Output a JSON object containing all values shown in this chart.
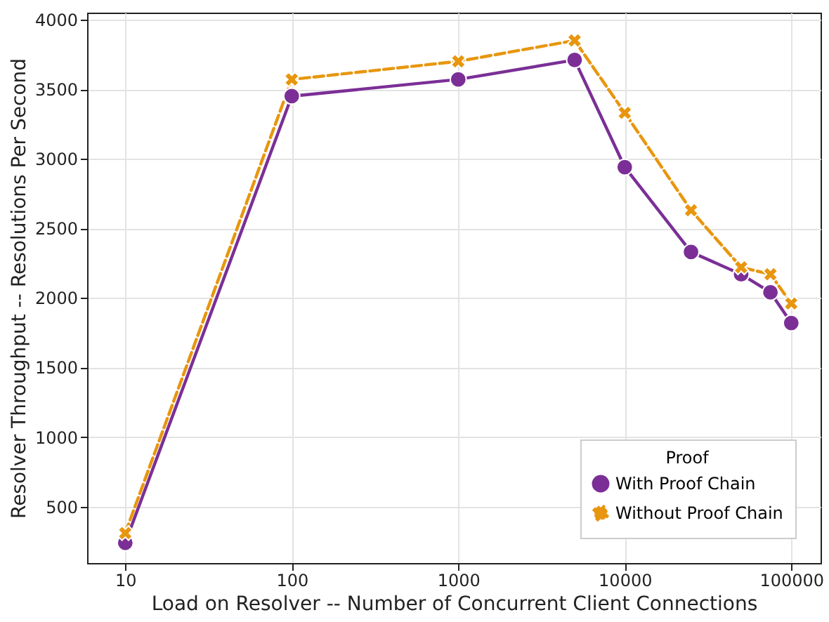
{
  "chart_data": {
    "type": "line",
    "xlabel": "Load on Resolver -- Number of Concurrent Client Connections",
    "ylabel": "Resolver Throughput -- Resolutions Per Second",
    "legend_title": "Proof",
    "log": "x",
    "grid": true,
    "legend": "bottom right",
    "x": [
      10,
      100,
      1000,
      5000,
      10000,
      25000,
      50000,
      75000,
      100000
    ],
    "xlim": [
      5.9,
      150000
    ],
    "xticks": [
      10,
      100,
      1000,
      10000,
      100000
    ],
    "ylim": [
      95,
      4050
    ],
    "yticks": [
      500,
      1000,
      1500,
      2000,
      2500,
      3000,
      3500,
      4000
    ],
    "series": [
      {
        "name": "With Proof Chain",
        "color": "#7b2f96",
        "marker": "circle",
        "line_style": "solid",
        "values": [
          240,
          3450,
          3570,
          3710,
          2940,
          2330,
          2170,
          2040,
          1820
        ]
      },
      {
        "name": "Without Proof Chain",
        "color": "#e8960f",
        "marker": "cross",
        "line_style": "dashed",
        "values": [
          310,
          3570,
          3700,
          3850,
          3330,
          2630,
          2220,
          2170,
          1960
        ]
      }
    ]
  }
}
